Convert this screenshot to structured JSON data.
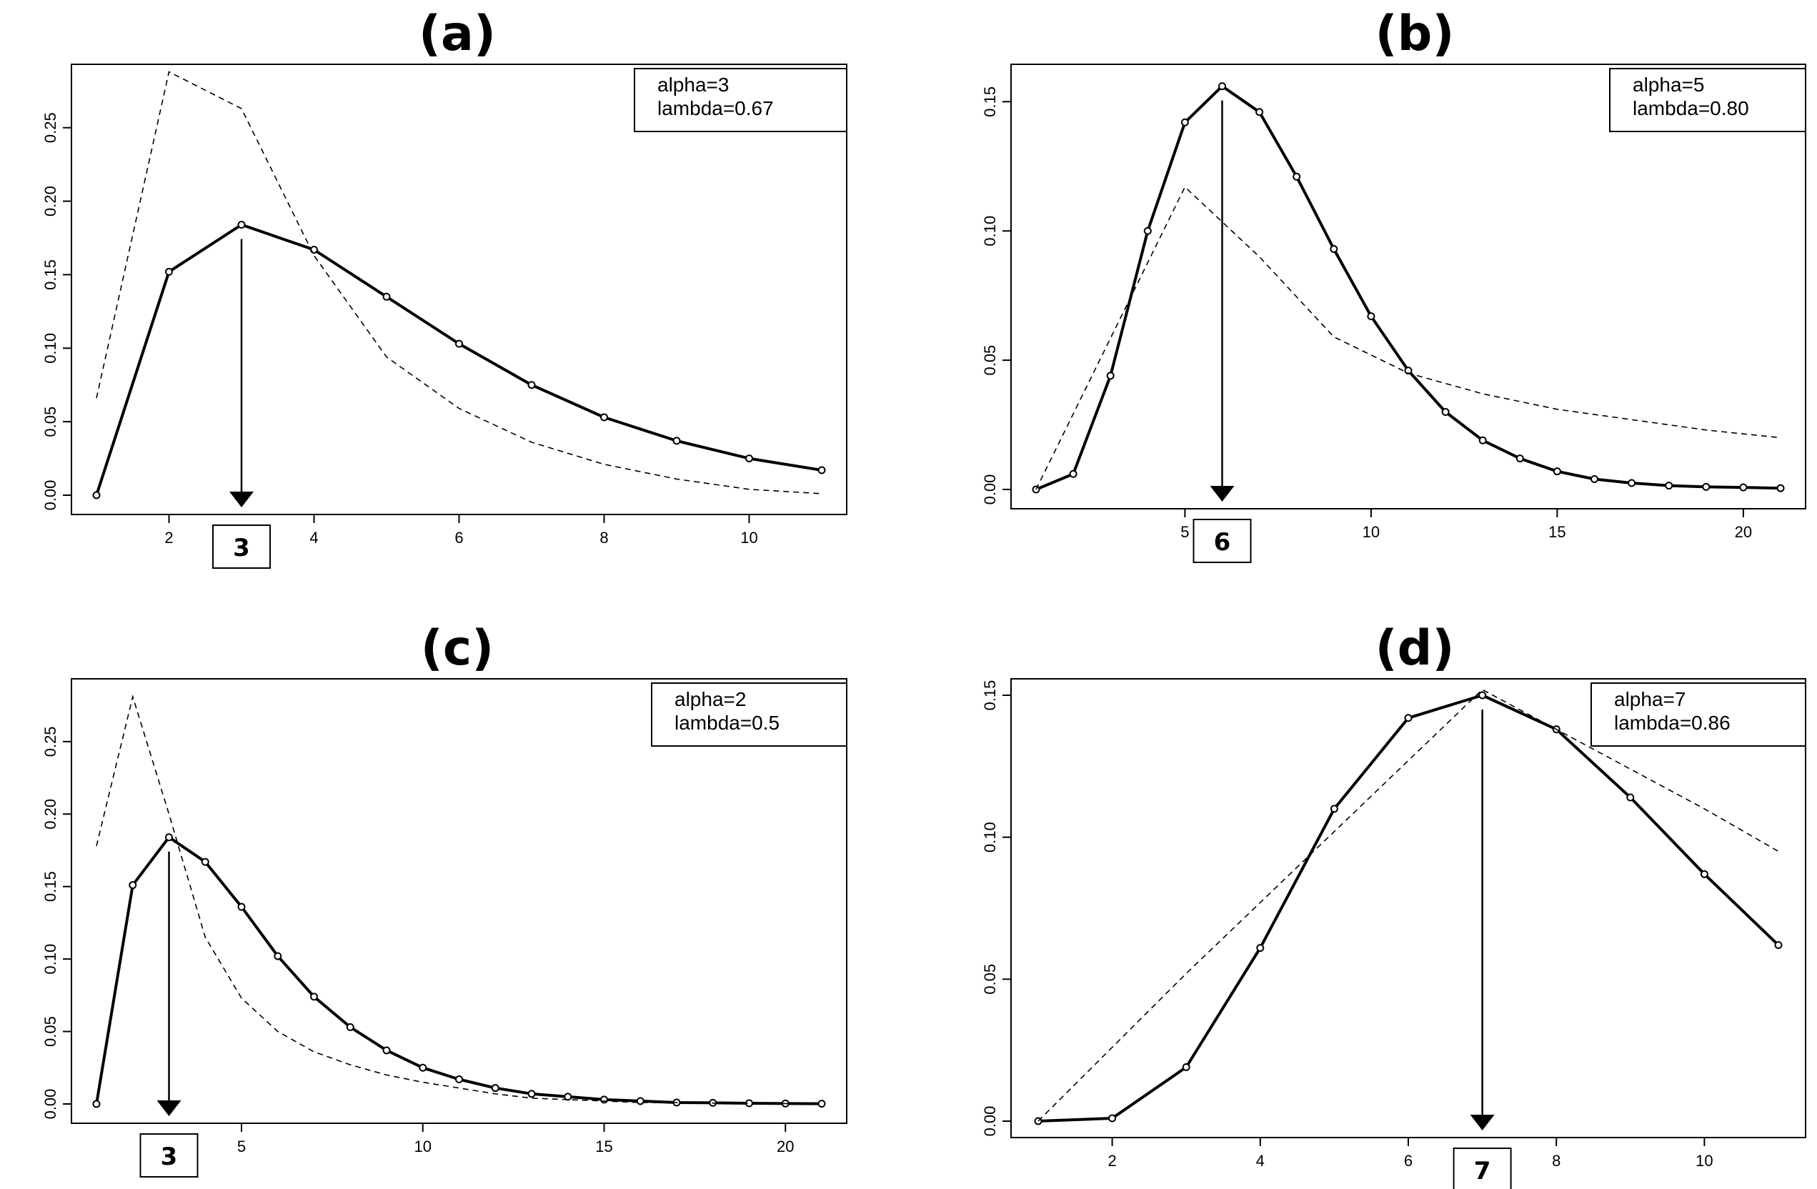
{
  "chart_data": [
    {
      "type": "line",
      "title": "(a)",
      "legend_lines": [
        "alpha=3",
        "lambda=0.67"
      ],
      "legend_position": "top-right",
      "x_ticks": [
        "2",
        "4",
        "6",
        "8",
        "10"
      ],
      "y_ticks": [
        "0.00",
        "0.05",
        "0.10",
        "0.15",
        "0.20",
        "0.25"
      ],
      "xlim": [
        1,
        11
      ],
      "ylim": [
        0,
        0.28
      ],
      "grid": false,
      "mode_label": "3",
      "mode_x": 3,
      "series": [
        {
          "style": "solid",
          "x": [
            1,
            2,
            3,
            4,
            5,
            6,
            7,
            8,
            9,
            10,
            11
          ],
          "y": [
            0.0,
            0.152,
            0.184,
            0.167,
            0.135,
            0.103,
            0.075,
            0.053,
            0.037,
            0.025,
            0.017
          ]
        },
        {
          "style": "dashed",
          "x": [
            1,
            2,
            3,
            4,
            5,
            6,
            7,
            8,
            9,
            10,
            11
          ],
          "y": [
            0.066,
            0.288,
            0.263,
            0.163,
            0.094,
            0.059,
            0.036,
            0.021,
            0.011,
            0.004,
            0.001
          ]
        }
      ]
    },
    {
      "type": "line",
      "title": "(b)",
      "legend_lines": [
        "alpha=5",
        "lambda=0.80"
      ],
      "legend_position": "top-right",
      "x_ticks": [
        "5",
        "10",
        "15",
        "20"
      ],
      "y_ticks": [
        "0.00",
        "0.05",
        "0.10",
        "0.15"
      ],
      "xlim": [
        1,
        21
      ],
      "ylim": [
        0,
        0.157
      ],
      "grid": false,
      "mode_label": "6",
      "mode_x": 6,
      "series": [
        {
          "style": "solid",
          "x": [
            1,
            2,
            3,
            4,
            5,
            6,
            7,
            8,
            9,
            10,
            11,
            12,
            13,
            14,
            15,
            16,
            17,
            18,
            19,
            20,
            21
          ],
          "y": [
            0.0,
            0.006,
            0.044,
            0.1,
            0.142,
            0.156,
            0.146,
            0.121,
            0.093,
            0.067,
            0.046,
            0.03,
            0.019,
            0.012,
            0.007,
            0.004,
            0.0025,
            0.0015,
            0.001,
            0.0008,
            0.0005
          ]
        },
        {
          "style": "dashed",
          "x": [
            1,
            5,
            7,
            9,
            11,
            13,
            15,
            17,
            19,
            21
          ],
          "y": [
            0.0,
            0.117,
            0.09,
            0.059,
            0.045,
            0.037,
            0.031,
            0.027,
            0.023,
            0.02
          ]
        }
      ]
    },
    {
      "type": "line",
      "title": "(c)",
      "legend_lines": [
        "alpha=2",
        "lambda=0.5"
      ],
      "legend_position": "top-right",
      "x_ticks": [
        "5",
        "10",
        "15",
        "20"
      ],
      "y_ticks": [
        "0.00",
        "0.05",
        "0.10",
        "0.15",
        "0.20",
        "0.25"
      ],
      "xlim": [
        1,
        21
      ],
      "ylim": [
        0,
        0.28
      ],
      "grid": false,
      "mode_label": "3",
      "mode_x": 3,
      "series": [
        {
          "style": "solid",
          "x": [
            1,
            2,
            3,
            4,
            5,
            6,
            7,
            8,
            9,
            10,
            11,
            12,
            13,
            14,
            15,
            16,
            17,
            18,
            19,
            20,
            21
          ],
          "y": [
            0.0,
            0.151,
            0.184,
            0.167,
            0.136,
            0.102,
            0.074,
            0.053,
            0.037,
            0.025,
            0.017,
            0.011,
            0.007,
            0.005,
            0.003,
            0.002,
            0.001,
            0.0008,
            0.0005,
            0.0003,
            0.0002
          ]
        },
        {
          "style": "dashed",
          "x": [
            1,
            2,
            3,
            4,
            5,
            6,
            7,
            8,
            9,
            10,
            11,
            12,
            13,
            14,
            15,
            16,
            17,
            18,
            19,
            20,
            21
          ],
          "y": [
            0.178,
            0.281,
            0.2,
            0.115,
            0.073,
            0.05,
            0.036,
            0.027,
            0.02,
            0.015,
            0.011,
            0.007,
            0.004,
            0.003,
            0.002,
            0.001,
            0.001,
            0.0006,
            0.0004,
            0.0003,
            0.0002
          ]
        }
      ]
    },
    {
      "type": "line",
      "title": "(d)",
      "legend_lines": [
        "alpha=7",
        "lambda=0.86"
      ],
      "legend_position": "top-right",
      "x_ticks": [
        "2",
        "4",
        "6",
        "8",
        "10"
      ],
      "y_ticks": [
        "0.00",
        "0.05",
        "0.10",
        "0.15"
      ],
      "xlim": [
        1,
        11
      ],
      "ylim": [
        0,
        0.15
      ],
      "grid": false,
      "mode_label": "7",
      "mode_x": 7,
      "series": [
        {
          "style": "solid",
          "x": [
            1,
            2,
            3,
            4,
            5,
            6,
            7,
            8,
            9,
            10,
            11
          ],
          "y": [
            0.0,
            0.001,
            0.019,
            0.061,
            0.11,
            0.142,
            0.15,
            0.138,
            0.114,
            0.087,
            0.062
          ]
        },
        {
          "style": "dashed",
          "x": [
            1,
            2,
            3,
            4,
            5,
            6,
            7,
            8,
            9,
            10,
            11
          ],
          "y": [
            0.0,
            0.026,
            0.052,
            0.077,
            0.102,
            0.127,
            0.152,
            0.138,
            0.124,
            0.11,
            0.095
          ]
        }
      ]
    }
  ]
}
